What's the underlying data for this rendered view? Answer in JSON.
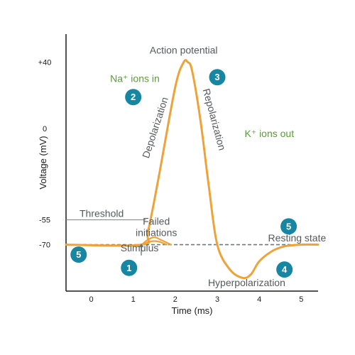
{
  "chart_data": {
    "type": "line",
    "title": "Action potential",
    "xlabel": "Time (ms)",
    "ylabel": "Voltage (mV)",
    "xlim": [
      -0.6,
      5.4
    ],
    "ylim": [
      -98,
      57
    ],
    "x_ticks": [
      0,
      1,
      2,
      3,
      4,
      5
    ],
    "y_ticks": [
      {
        "value": 40,
        "label": "+40"
      },
      {
        "value": 0,
        "label": "0"
      },
      {
        "value": -55,
        "label": "-55"
      },
      {
        "value": -70,
        "label": "-70"
      }
    ],
    "reference_lines": [
      {
        "label": "Threshold",
        "y": -55,
        "x_end": 1.3,
        "style": "solid"
      },
      {
        "label": "Resting state",
        "y": -70,
        "style": "dashed"
      }
    ],
    "series": [
      {
        "color": "#eea33a",
        "x": [
          -0.6,
          1.2,
          1.35,
          1.6,
          2.0,
          2.2,
          2.3,
          2.4,
          2.6,
          2.8,
          3.0,
          3.3,
          3.6,
          3.8,
          4.0,
          4.3,
          4.6,
          5.0,
          5.4
        ],
        "y": [
          -70,
          -70,
          -62,
          -30,
          25,
          40,
          40,
          35,
          5,
          -35,
          -70,
          -85,
          -90,
          -88,
          -80,
          -74,
          -71,
          -70,
          -70
        ]
      },
      {
        "name": "Failed initiations",
        "color": "#eea33a",
        "x": [
          1.2,
          1.35,
          1.5,
          1.65,
          1.9
        ],
        "y": [
          -70,
          -67,
          -65.5,
          -67,
          -70
        ]
      },
      {
        "name": "Failed initiations",
        "color": "#eea33a",
        "x": [
          1.2,
          1.35,
          1.5,
          1.65,
          1.8
        ],
        "y": [
          -70,
          -68.5,
          -67.8,
          -68.5,
          -70
        ]
      }
    ],
    "annotations": [
      {
        "text": "Action potential",
        "x": 2.2,
        "y": 40
      },
      {
        "text": "Na⁺ ions in",
        "x": 0.45,
        "y": 28
      },
      {
        "text": "K⁺ ions out",
        "x": 3.65,
        "y": -5
      },
      {
        "text": "Depolarization",
        "x": 1.6,
        "y": 0
      },
      {
        "text": "Repolarization",
        "x": 2.85,
        "y": 5
      },
      {
        "text": "Failed initiations",
        "x": 1.55,
        "y": -58
      },
      {
        "text": "Stimulus",
        "x": 1.15,
        "y": -74
      },
      {
        "text": "Hyperpolarization",
        "x": 3.7,
        "y": -95
      },
      {
        "text": "Resting state",
        "x": 4.9,
        "y": -68
      }
    ],
    "markers": [
      {
        "label": "1",
        "x": 0.9,
        "y": -84
      },
      {
        "label": "2",
        "x": 1.0,
        "y": 19
      },
      {
        "label": "3",
        "x": 3.0,
        "y": 31
      },
      {
        "label": "4",
        "x": 4.6,
        "y": -85
      },
      {
        "label": "5",
        "x": -0.3,
        "y": -76
      },
      {
        "label": "5",
        "x": 4.7,
        "y": -59
      }
    ],
    "grid": false,
    "legend": "none"
  }
}
